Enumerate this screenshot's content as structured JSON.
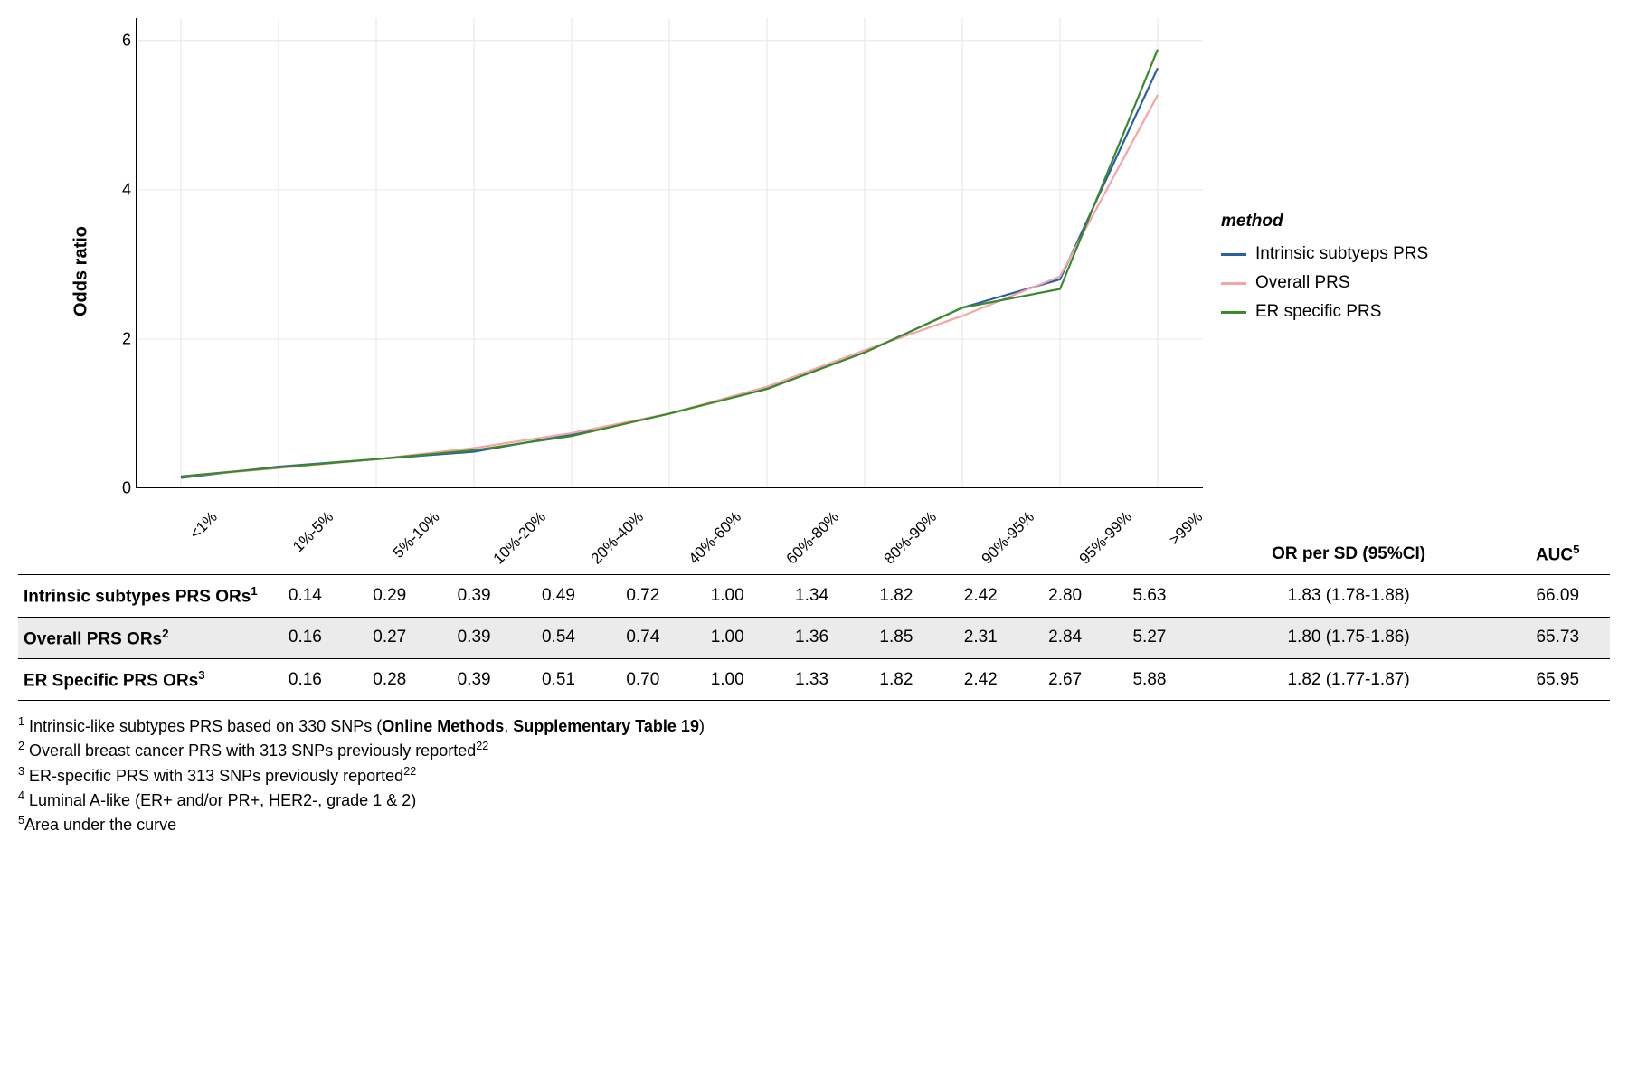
{
  "chart": {
    "type": "line",
    "ylabel": "Odds ratio",
    "ylim": [
      0,
      6.3
    ],
    "ytick_step": 2,
    "yticks": [
      0,
      2,
      4,
      6
    ],
    "categories": [
      "<1%",
      "1%-5%",
      "5%-10%",
      "10%-20%",
      "20%-40%",
      "40%-60%",
      "60%-80%",
      "80%-90%",
      "90%-95%",
      "95%-99%",
      ">99%"
    ],
    "grid_color": "#e6e6e6",
    "border_color": "#000000",
    "background_color": "#ffffff",
    "xtick_rotation_deg": 45,
    "line_width": 2.2,
    "label_fontsize": 20,
    "tick_fontsize": 18,
    "series": [
      {
        "name": "Intrinsic subtyeps PRS",
        "color": "#2b5ea8",
        "values": [
          0.14,
          0.29,
          0.39,
          0.49,
          0.72,
          1.0,
          1.34,
          1.82,
          2.42,
          2.8,
          5.63
        ]
      },
      {
        "name": "Overall PRS",
        "color": "#f4a5a5",
        "values": [
          0.16,
          0.27,
          0.39,
          0.54,
          0.74,
          1.0,
          1.36,
          1.85,
          2.31,
          2.84,
          5.27
        ]
      },
      {
        "name": "ER specific PRS",
        "color": "#3a8a29",
        "values": [
          0.16,
          0.28,
          0.39,
          0.51,
          0.7,
          1.0,
          1.33,
          1.82,
          2.42,
          2.67,
          5.88
        ]
      }
    ]
  },
  "legend": {
    "title": "method"
  },
  "table": {
    "header": {
      "or_sd": "OR per SD (95%CI)",
      "auc": "AUC"
    },
    "auc_sup": "5",
    "rows": [
      {
        "label": "Intrinsic subtypes PRS ORs",
        "sup": "1",
        "values": [
          "0.14",
          "0.29",
          "0.39",
          "0.49",
          "0.72",
          "1.00",
          "1.34",
          "1.82",
          "2.42",
          "2.80",
          "5.63"
        ],
        "or_sd": "1.83 (1.78-1.88)",
        "auc": "66.09",
        "shaded": false
      },
      {
        "label": "Overall PRS ORs",
        "sup": "2",
        "values": [
          "0.16",
          "0.27",
          "0.39",
          "0.54",
          "0.74",
          "1.00",
          "1.36",
          "1.85",
          "2.31",
          "2.84",
          "5.27"
        ],
        "or_sd": "1.80 (1.75-1.86)",
        "auc": "65.73",
        "shaded": true
      },
      {
        "label": "ER Specific PRS ORs",
        "sup": "3",
        "values": [
          "0.16",
          "0.28",
          "0.39",
          "0.51",
          "0.70",
          "1.00",
          "1.33",
          "1.82",
          "2.42",
          "2.67",
          "5.88"
        ],
        "or_sd": "1.82 (1.77-1.87)",
        "auc": "65.95",
        "shaded": false
      }
    ]
  },
  "footnotes": {
    "f1": {
      "sup": "1",
      "pre": " Intrinsic-like subtypes PRS based on 330 SNPs (",
      "bold": "Online Methods",
      "mid": ", ",
      "bold2": "Supplementary Table 19",
      "post": ")"
    },
    "f2": {
      "sup": "2",
      "text": " Overall breast cancer PRS with 313 SNPs previously reported",
      "ref": "22"
    },
    "f3": {
      "sup": "3",
      "text": " ER-specific PRS with 313 SNPs previously reported",
      "ref": "22"
    },
    "f4": {
      "sup": "4",
      "text": " Luminal A-like (ER+ and/or PR+, HER2-, grade 1 & 2)"
    },
    "f5": {
      "sup": "5",
      "text": "Area under the curve"
    }
  }
}
